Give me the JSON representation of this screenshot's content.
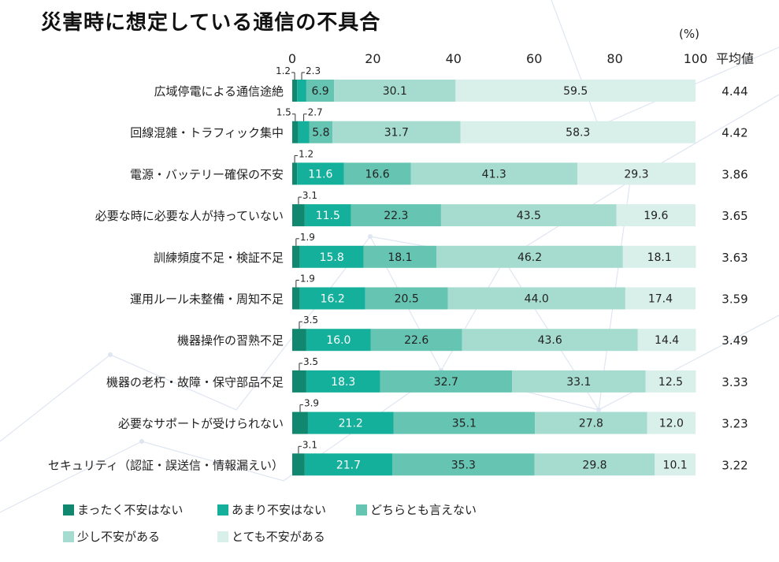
{
  "title": "災害時に想定している通信の不具合",
  "unit_label": "(%)",
  "avg_header": "平均値",
  "colors": [
    "#12876f",
    "#14b09b",
    "#66c4b2",
    "#a6dccf",
    "#d8efea"
  ],
  "legend": [
    "まったく不安はない",
    "あまり不安はない",
    "どちらとも言えない",
    "少し不安がある",
    "とても不安がある"
  ],
  "chart_data": {
    "type": "bar",
    "orientation": "horizontal",
    "stacked": true,
    "xlim": [
      0,
      100
    ],
    "x_ticks": [
      "0",
      "20",
      "40",
      "60",
      "80",
      "100"
    ],
    "categories": [
      "広域停電による通信途絶",
      "回線混雑・トラフィック集中",
      "電源・バッテリー確保の不安",
      "必要な時に必要な人が持っていない",
      "訓練頻度不足・検証不足",
      "運用ルール未整備・周知不足",
      "機器操作の習熟不足",
      "機器の老朽・故障・保守部品不足",
      "必要なサポートが受けられない",
      "セキュリティ（認証・誤送信・情報漏えい）"
    ],
    "series": [
      {
        "name": "まったく不安はない",
        "values": [
          1.2,
          1.5,
          1.2,
          3.1,
          1.9,
          1.9,
          3.5,
          3.5,
          3.9,
          3.1
        ]
      },
      {
        "name": "あまり不安はない",
        "values": [
          2.3,
          2.7,
          11.6,
          11.5,
          15.8,
          16.2,
          16.0,
          18.3,
          21.2,
          21.7
        ]
      },
      {
        "name": "どちらとも言えない",
        "values": [
          6.9,
          5.8,
          16.6,
          22.3,
          18.1,
          20.5,
          22.6,
          32.7,
          35.1,
          35.3
        ]
      },
      {
        "name": "少し不安がある",
        "values": [
          30.1,
          31.7,
          41.3,
          43.5,
          46.2,
          44.0,
          43.6,
          33.1,
          27.8,
          29.8
        ]
      },
      {
        "name": "とても不安がある",
        "values": [
          59.5,
          58.3,
          29.3,
          19.6,
          18.1,
          17.4,
          14.4,
          12.5,
          12.0,
          10.1
        ]
      }
    ],
    "averages": [
      "4.44",
      "4.42",
      "3.86",
      "3.65",
      "3.63",
      "3.59",
      "3.49",
      "3.33",
      "3.23",
      "3.22"
    ]
  }
}
